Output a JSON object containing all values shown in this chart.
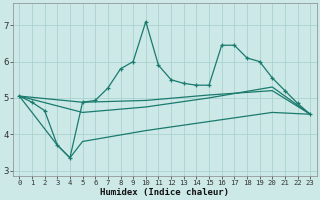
{
  "xlabel": "Humidex (Indice chaleur)",
  "background_color": "#cce9e7",
  "grid_color": "#aad3d0",
  "line_color": "#1a7a6e",
  "xlim": [
    -0.5,
    23.5
  ],
  "ylim": [
    2.85,
    7.6
  ],
  "yticks": [
    3,
    4,
    5,
    6,
    7
  ],
  "xticks": [
    0,
    1,
    2,
    3,
    4,
    5,
    6,
    7,
    8,
    9,
    10,
    11,
    12,
    13,
    14,
    15,
    16,
    17,
    18,
    19,
    20,
    21,
    22,
    23
  ],
  "line1_x": [
    0,
    1,
    2,
    3,
    4,
    5,
    6,
    7,
    8,
    9,
    10,
    11,
    12,
    13,
    14,
    15,
    16,
    17,
    18,
    19,
    20,
    21,
    22,
    23
  ],
  "line1_y": [
    5.05,
    4.88,
    4.65,
    3.7,
    3.35,
    4.88,
    4.93,
    5.27,
    5.8,
    6.0,
    7.1,
    5.9,
    5.5,
    5.4,
    5.35,
    5.35,
    6.45,
    6.45,
    6.1,
    6.0,
    5.55,
    5.2,
    4.85,
    4.55
  ],
  "line2_x": [
    0,
    5,
    10,
    15,
    20,
    23
  ],
  "line2_y": [
    5.05,
    4.88,
    4.93,
    5.08,
    5.2,
    4.55
  ],
  "line3_x": [
    0,
    5,
    10,
    15,
    20,
    23
  ],
  "line3_y": [
    5.05,
    4.6,
    4.75,
    5.0,
    5.3,
    4.55
  ],
  "line4_x": [
    0,
    3,
    4,
    5,
    10,
    15,
    20,
    23
  ],
  "line4_y": [
    5.05,
    3.7,
    3.35,
    3.8,
    4.1,
    4.35,
    4.6,
    4.55
  ]
}
